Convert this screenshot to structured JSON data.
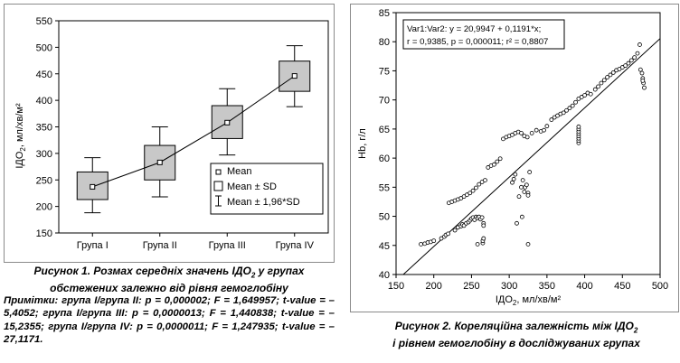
{
  "chart_data": [
    {
      "type": "box",
      "ylabel_parts": {
        "main": "IДО",
        "sub": "2",
        "unit": ", мл/хв/м²"
      },
      "categories": [
        "Група I",
        "Група II",
        "Група III",
        "Група IV"
      ],
      "ylim": [
        150,
        550
      ],
      "yticks": [
        "150",
        "200",
        "250",
        "300",
        "350",
        "400",
        "450",
        "500",
        "550"
      ],
      "mean": [
        237,
        283,
        358,
        446
      ],
      "sd_low": [
        213,
        250,
        328,
        417
      ],
      "sd_high": [
        265,
        315,
        390,
        474
      ],
      "whisker_low": [
        188,
        218,
        297,
        388
      ],
      "whisker_high": [
        292,
        350,
        422,
        503
      ],
      "legend": [
        "Mean",
        "Mean ± SD",
        "Mean ± 1,96*SD"
      ],
      "legend_position": "bottom-right",
      "grid": false
    },
    {
      "type": "scatter",
      "xlabel_parts": {
        "main": "IДО",
        "sub": "2",
        "unit": ", мл/хв/м²"
      },
      "ylabel": "Hb, г/л",
      "xlim": [
        150,
        500
      ],
      "ylim": [
        40,
        85
      ],
      "xticks": [
        "150",
        "200",
        "250",
        "300",
        "350",
        "400",
        "450",
        "500"
      ],
      "yticks": [
        "40",
        "45",
        "50",
        "55",
        "60",
        "65",
        "70",
        "75",
        "80",
        "85"
      ],
      "annotation": [
        "Var1:Var2: y = 20,9947 + 0,1191*x;",
        "r = 0,9385, p = 0,000011; r² = 0,8807"
      ],
      "regression": {
        "intercept": 20.9947,
        "slope": 0.1191
      },
      "grid": false,
      "points": [
        [
          183,
          45.2
        ],
        [
          188,
          45.3
        ],
        [
          192,
          45.5
        ],
        [
          196,
          45.6
        ],
        [
          200,
          45.8
        ],
        [
          210,
          46.2
        ],
        [
          214,
          46.5
        ],
        [
          216,
          46.8
        ],
        [
          219,
          47.0
        ],
        [
          228,
          47.6
        ],
        [
          232,
          48.1
        ],
        [
          236,
          48.3
        ],
        [
          238,
          48.6
        ],
        [
          240,
          48.4
        ],
        [
          243,
          48.8
        ],
        [
          246,
          49.0
        ],
        [
          248,
          49.3
        ],
        [
          250,
          49.6
        ],
        [
          252,
          49.8
        ],
        [
          254,
          49.4
        ],
        [
          256,
          49.9
        ],
        [
          258,
          49.7
        ],
        [
          260,
          49.9
        ],
        [
          262,
          49.5
        ],
        [
          264,
          49.8
        ],
        [
          266,
          48.8
        ],
        [
          258,
          45.2
        ],
        [
          265,
          45.4
        ],
        [
          265,
          45.8
        ],
        [
          266,
          46.2
        ],
        [
          266,
          48.4
        ],
        [
          220,
          52.3
        ],
        [
          224,
          52.5
        ],
        [
          228,
          52.7
        ],
        [
          232,
          52.9
        ],
        [
          236,
          53.1
        ],
        [
          240,
          53.4
        ],
        [
          244,
          53.7
        ],
        [
          248,
          54.0
        ],
        [
          252,
          54.4
        ],
        [
          256,
          54.9
        ],
        [
          260,
          55.5
        ],
        [
          264,
          55.9
        ],
        [
          268,
          56.2
        ],
        [
          272,
          58.4
        ],
        [
          276,
          58.7
        ],
        [
          280,
          58.9
        ],
        [
          284,
          59.4
        ],
        [
          288,
          59.9
        ],
        [
          292,
          63.3
        ],
        [
          296,
          63.6
        ],
        [
          300,
          63.8
        ],
        [
          304,
          64.0
        ],
        [
          308,
          64.3
        ],
        [
          312,
          64.5
        ],
        [
          316,
          64.3
        ],
        [
          320,
          63.8
        ],
        [
          324,
          63.6
        ],
        [
          330,
          64.3
        ],
        [
          336,
          64.8
        ],
        [
          342,
          64.6
        ],
        [
          346,
          64.8
        ],
        [
          350,
          65.5
        ],
        [
          356,
          66.6
        ],
        [
          360,
          67.0
        ],
        [
          364,
          67.3
        ],
        [
          368,
          67.6
        ],
        [
          372,
          67.8
        ],
        [
          376,
          68.2
        ],
        [
          380,
          68.6
        ],
        [
          384,
          69.0
        ],
        [
          388,
          69.6
        ],
        [
          392,
          70.2
        ],
        [
          396,
          70.5
        ],
        [
          400,
          70.8
        ],
        [
          404,
          71.2
        ],
        [
          408,
          71.0
        ],
        [
          414,
          71.8
        ],
        [
          418,
          72.3
        ],
        [
          422,
          72.9
        ],
        [
          426,
          73.4
        ],
        [
          430,
          73.9
        ],
        [
          434,
          74.3
        ],
        [
          438,
          74.7
        ],
        [
          442,
          75.1
        ],
        [
          446,
          75.3
        ],
        [
          450,
          75.6
        ],
        [
          454,
          75.9
        ],
        [
          458,
          76.3
        ],
        [
          462,
          76.8
        ],
        [
          466,
          77.3
        ],
        [
          470,
          78.0
        ],
        [
          473,
          79.5
        ],
        [
          474,
          75.2
        ],
        [
          476,
          74.6
        ],
        [
          477,
          73.7
        ],
        [
          478,
          72.9
        ],
        [
          479,
          72.1
        ],
        [
          477,
          73.3
        ],
        [
          310,
          48.8
        ],
        [
          313,
          53.4
        ],
        [
          316,
          55.0
        ],
        [
          318,
          56.2
        ],
        [
          320,
          54.2
        ],
        [
          321,
          55.0
        ],
        [
          323,
          55.4
        ],
        [
          325,
          54.0
        ],
        [
          325,
          53.6
        ],
        [
          327,
          57.6
        ],
        [
          317,
          49.9
        ],
        [
          325,
          45.2
        ],
        [
          392,
          62.6
        ],
        [
          392,
          63.0
        ],
        [
          392,
          63.4
        ],
        [
          392,
          63.8
        ],
        [
          392,
          64.2
        ],
        [
          392,
          64.6
        ],
        [
          392,
          65.0
        ],
        [
          392,
          65.4
        ],
        [
          304,
          55.8
        ],
        [
          306,
          56.4
        ],
        [
          308,
          57.2
        ]
      ]
    }
  ],
  "captions": {
    "fig1_lead": "Рисунок 1. Розмах середніх значень IДО",
    "fig1_sub": "2",
    "fig1_tail": " у групах обстежених залежно від рівня гемоглобіну",
    "notes": "Примітки: група I/група II: p = 0,000002; F = 1,649957; t-value = –5,4052; група I/група III: p = 0,0000013; F = 1,440838; t-value = –15,2355; група I/група IV: p = 0,0000011; F = 1,247935; t-value = –27,1171.",
    "fig2_lead": "Рисунок 2. Кореляційна залежність між IДО",
    "fig2_sub": "2",
    "fig2_tail": "і рівнем гемоглобіну в досліджуваних групах"
  }
}
